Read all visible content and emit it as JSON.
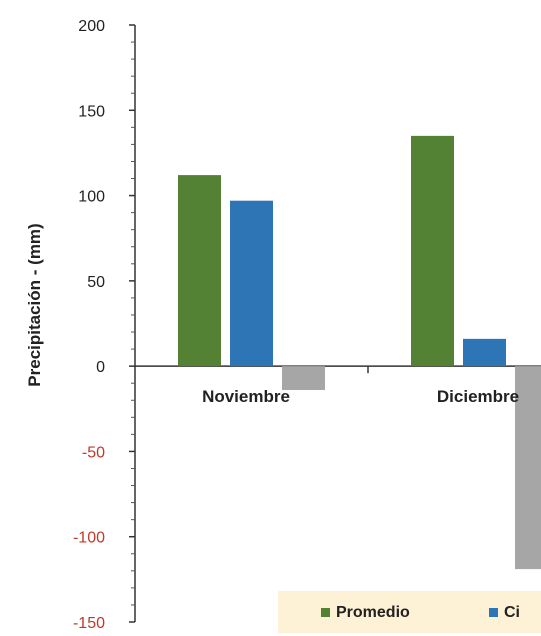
{
  "chart_data": {
    "type": "bar",
    "title": "",
    "xlabel": "",
    "ylabel": "Precipitación - (mm)",
    "ylim": [
      -150,
      200
    ],
    "yticks": [
      200,
      150,
      100,
      50,
      0,
      -50,
      -100,
      -150
    ],
    "categories": [
      "Noviembre",
      "Diciembre"
    ],
    "series": [
      {
        "name": "Promedio",
        "color": "#548235",
        "values": [
          112,
          135
        ]
      },
      {
        "name": "Ci",
        "color": "#2e75b6",
        "values": [
          97,
          16
        ]
      },
      {
        "color": "#a6a6a6",
        "values": [
          -14,
          -119
        ]
      }
    ],
    "legend": {
      "placement": "bottom",
      "background": "#fdf1d6",
      "labels": [
        "Promedio",
        "Ci"
      ]
    },
    "grid": false
  }
}
